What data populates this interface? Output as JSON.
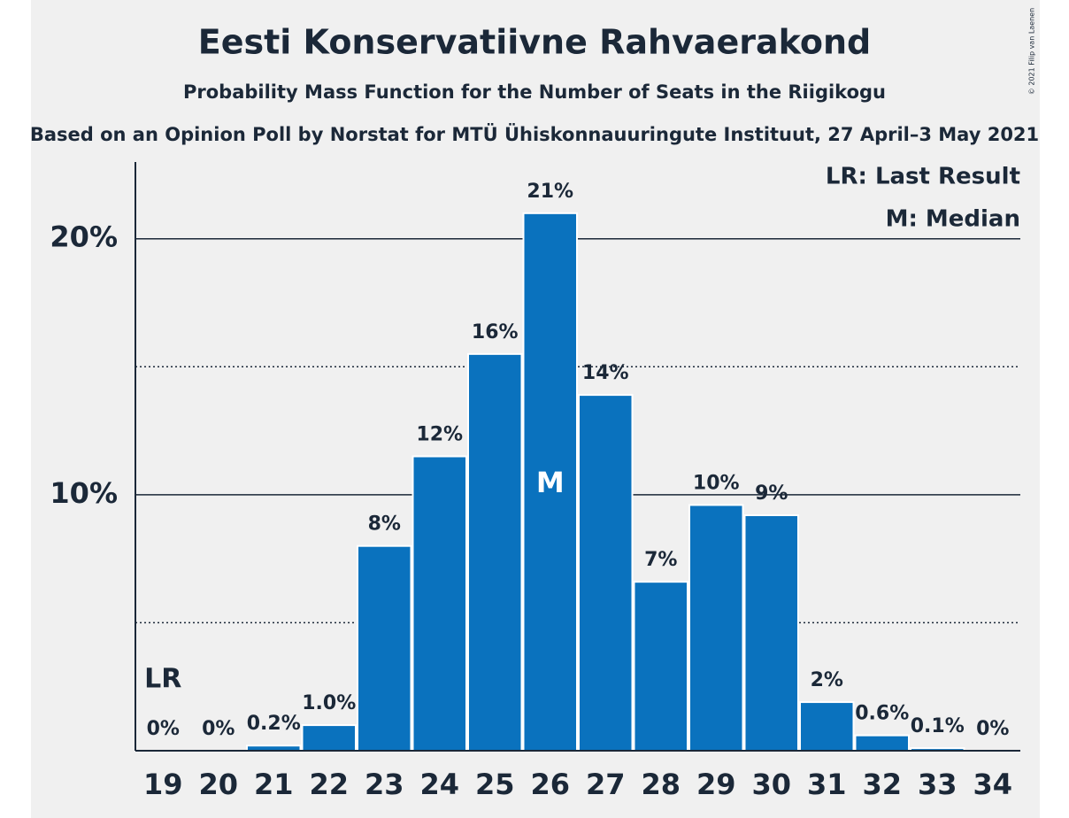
{
  "chart_data": {
    "type": "bar",
    "title": "Eesti Konservatiivne Rahvaerakond",
    "subtitle": "Probability Mass Function for the Number of Seats in the Riigikogu",
    "source": "Based on an Opinion Poll by Norstat for MTÜ Ühiskonnauuringute Instituut, 27 April–3 May 2021",
    "copyright": "© 2021 Filip van Laenen",
    "categories": [
      19,
      20,
      21,
      22,
      23,
      24,
      25,
      26,
      27,
      28,
      29,
      30,
      31,
      32,
      33,
      34
    ],
    "values": [
      0,
      0,
      0.2,
      1.0,
      8.0,
      11.5,
      15.5,
      21.0,
      13.9,
      6.6,
      9.6,
      9.2,
      1.9,
      0.6,
      0.1,
      0
    ],
    "value_labels": [
      "0%",
      "0%",
      "0.2%",
      "1.0%",
      "8%",
      "12%",
      "16%",
      "21%",
      "14%",
      "7%",
      "10%",
      "9%",
      "2%",
      "0.6%",
      "0.1%",
      "0%"
    ],
    "color": "#0a72be",
    "ylim": [
      0,
      23
    ],
    "yticks": [
      {
        "value": 10,
        "label": "10%"
      },
      {
        "value": 20,
        "label": "20%"
      }
    ],
    "yminorticks": [
      5,
      15
    ],
    "grid": true,
    "last_result": {
      "label": "LR",
      "category": 19
    },
    "median": {
      "label": "M",
      "category": 26
    },
    "legend": [
      "LR: Last Result",
      "M: Median"
    ],
    "legend_position": "top-right"
  }
}
